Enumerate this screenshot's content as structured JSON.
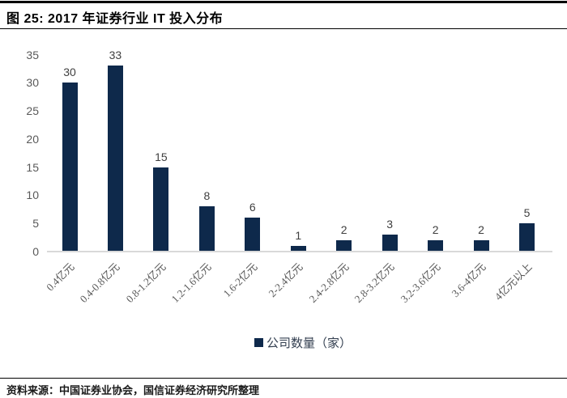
{
  "figure": {
    "title": "图 25:  2017 年证券行业 IT 投入分布",
    "source": "资料来源：中国证券业协会，国信证券经济研究所整理"
  },
  "chart_data": {
    "type": "bar",
    "title": "2017 年证券行业 IT 投入分布",
    "categories": [
      "0.4亿元",
      "0.4-0.8亿元",
      "0.8-1.2亿元",
      "1.2-1.6亿元",
      "1.6-2亿元",
      "2-2.4亿元",
      "2.4-2.8亿元",
      "2.8-3.2亿元",
      "3.2-3.6亿元",
      "3.6-4亿元",
      "4亿元以上"
    ],
    "values": [
      30,
      33,
      15,
      8,
      6,
      1,
      2,
      3,
      2,
      2,
      5
    ],
    "legend": "公司数量（家）",
    "legend_position": "bottom",
    "xlabel": "",
    "ylabel": "",
    "ylim": [
      0,
      35
    ],
    "yticks": [
      0,
      5,
      10,
      15,
      20,
      25,
      30,
      35
    ],
    "grid": false,
    "data_labels": true,
    "colors": {
      "bar": "#0e294b",
      "axis_line": "#d9d9d9",
      "tick_text": "#595959",
      "data_label_text": "#3f3f3f",
      "legend_text": "#333f50"
    }
  }
}
